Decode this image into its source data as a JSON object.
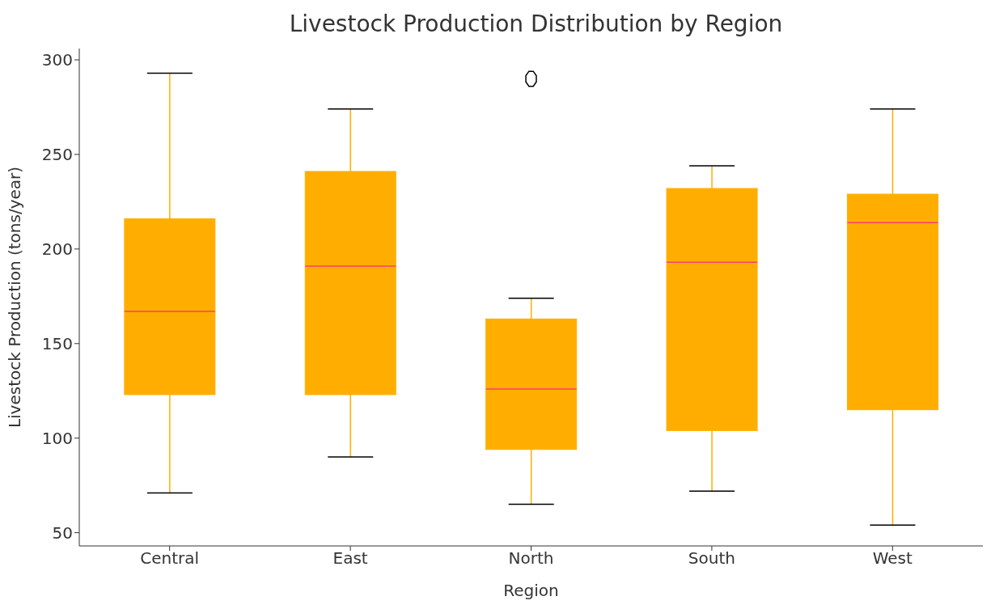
{
  "chart_data": {
    "type": "box",
    "title": "Livestock Production Distribution by Region",
    "xlabel": "Region",
    "ylabel": "Livestock Production (tons/year)",
    "categories": [
      "Central",
      "East",
      "North",
      "South",
      "West"
    ],
    "color": "#ffae00",
    "boxes": [
      {
        "low": 71,
        "q1": 123,
        "median": 167,
        "q3": 216,
        "high": 293
      },
      {
        "low": 90,
        "q1": 123,
        "median": 191,
        "q3": 241,
        "high": 274
      },
      {
        "low": 65,
        "q1": 94,
        "median": 126,
        "q3": 163,
        "high": 174,
        "outliers": [
          290
        ]
      },
      {
        "low": 72,
        "q1": 104,
        "median": 193,
        "q3": 232,
        "high": 244
      },
      {
        "low": 54,
        "q1": 115,
        "median": 214,
        "q3": 229,
        "high": 274
      }
    ],
    "ylim": [
      43,
      306
    ],
    "yticks": [
      50,
      100,
      150,
      200,
      250,
      300
    ],
    "grid": false
  }
}
